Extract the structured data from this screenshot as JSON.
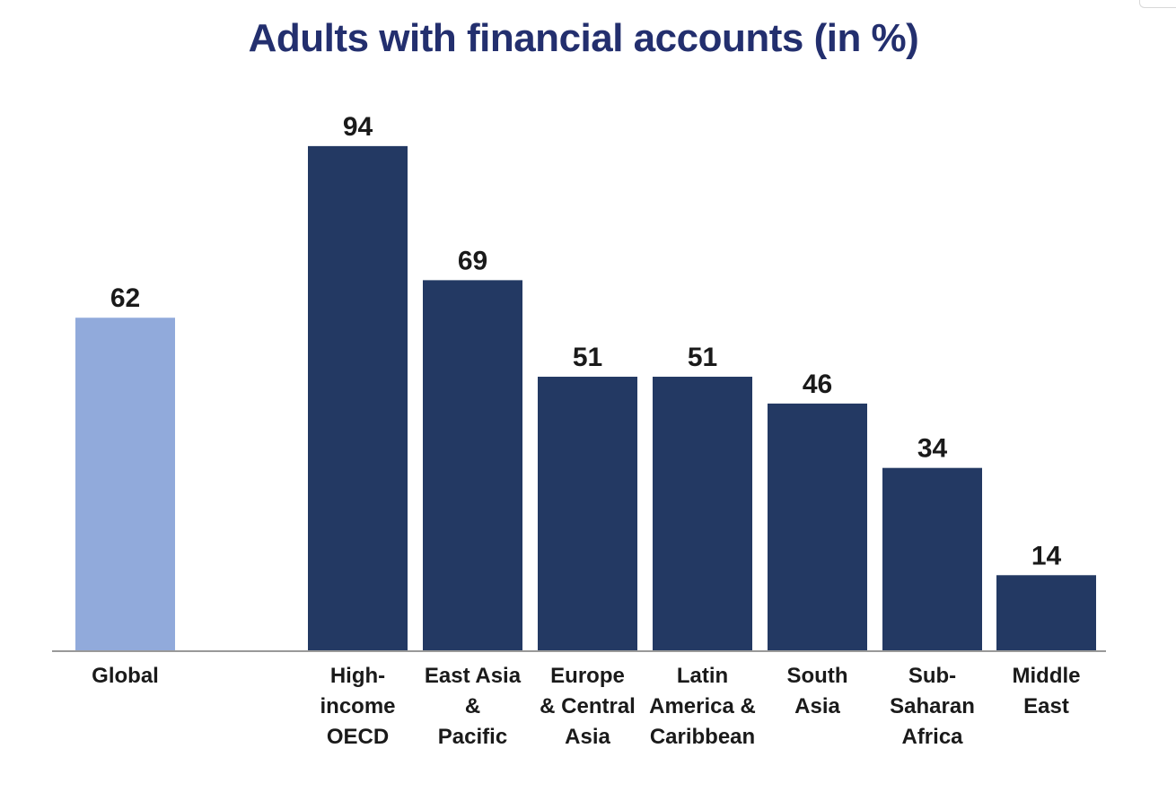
{
  "chart_data": {
    "type": "bar",
    "title": "Adults with financial accounts (in %)",
    "xlabel": "",
    "ylabel": "",
    "ylim": [
      0,
      100
    ],
    "grid": false,
    "legend": "none",
    "categories": [
      [
        "Global"
      ],
      [
        "High-",
        "income",
        "OECD"
      ],
      [
        "East Asia",
        "&",
        "Pacific"
      ],
      [
        "Europe",
        "& Central",
        "Asia"
      ],
      [
        "Latin",
        "America &",
        "Caribbean"
      ],
      [
        "South",
        "Asia"
      ],
      [
        "Sub-",
        "Saharan",
        "Africa"
      ],
      [
        "Middle",
        "East"
      ]
    ],
    "values": [
      62,
      94,
      69,
      51,
      51,
      46,
      34,
      14
    ],
    "bar_colors": [
      "#91aadb",
      "#233963",
      "#233963",
      "#233963",
      "#233963",
      "#233963",
      "#233963",
      "#233963"
    ],
    "colors": {
      "title": "#232f6e",
      "baseline": "#999999",
      "label": "#1a1a1a"
    }
  }
}
